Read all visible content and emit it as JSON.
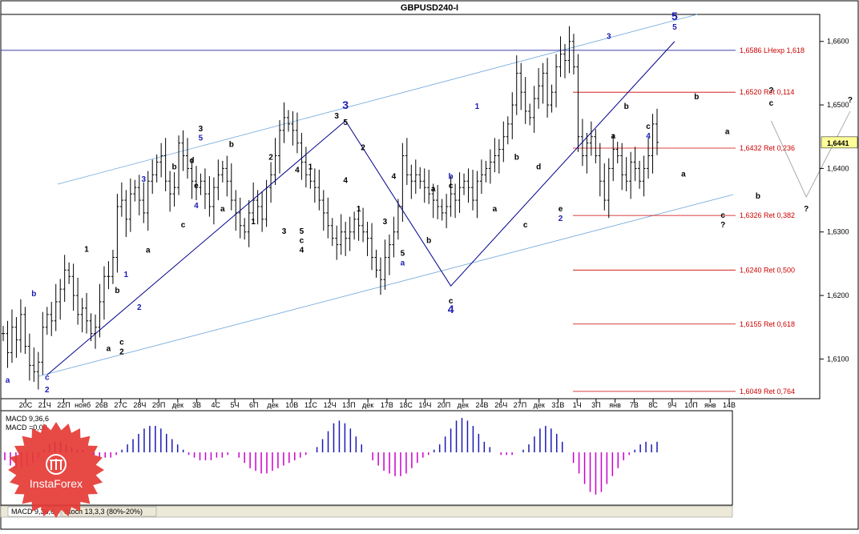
{
  "title": "GBPUSD240-I",
  "colors": {
    "candle": "#000000",
    "channel": "#6fa8dc",
    "impulse_line": "#00008b",
    "fib_line": "#cc0000",
    "wave_blue": "#1a1ab3",
    "wave_black": "#000000",
    "macd_positive": "#1a1ab3",
    "macd_negative": "#cc00cc",
    "price_tag_bg": "#ffff99"
  },
  "chart_data": {
    "type": "candlestick",
    "instrument": "GBPUSD240-I",
    "ylim": [
      1.604,
      1.664
    ],
    "y_ticks": [
      "1,6600",
      "1,6500",
      "1,6400",
      "1,6300",
      "1,6200",
      "1,6100"
    ],
    "y_tick_values": [
      1.66,
      1.65,
      1.64,
      1.63,
      1.62,
      1.61
    ],
    "current_price": "1,6441",
    "x_ticks": [
      "20С",
      "21Ч",
      "22П",
      "нояб",
      "26В",
      "27С",
      "28Ч",
      "29П",
      "дек",
      "3В",
      "4С",
      "5Ч",
      "6П",
      "дек",
      "10В",
      "11С",
      "12Ч",
      "13П",
      "дек",
      "17В",
      "18С",
      "19Ч",
      "20П",
      "дек",
      "24В",
      "26Ч",
      "27П",
      "дек",
      "31В",
      "1Ч",
      "3П",
      "янв",
      "7В",
      "8С",
      "9Ч",
      "10П",
      "янв",
      "14В"
    ],
    "fib_levels": [
      {
        "label": "1,6586 LHexp 1,618",
        "value": 1.6586,
        "blue": true
      },
      {
        "label": "1,6520 Ret 0,114",
        "value": 1.652
      },
      {
        "label": "1,6432 Ret 0,236",
        "value": 1.6432
      },
      {
        "label": "1,6326 Ret 0,382",
        "value": 1.6326
      },
      {
        "label": "1,6240 Ret 0,500",
        "value": 1.624
      },
      {
        "label": "1,6155 Ret 0,618",
        "value": 1.6155
      },
      {
        "label": "1,6049 Ret 0,764",
        "value": 1.6049
      }
    ],
    "close_path": [
      1.614,
      1.611,
      1.615,
      1.613,
      1.617,
      1.612,
      1.609,
      1.608,
      1.6095,
      1.615,
      1.617,
      1.616,
      1.619,
      1.621,
      1.624,
      1.623,
      1.62,
      1.617,
      1.618,
      1.616,
      1.614,
      1.615,
      1.619,
      1.623,
      1.623,
      1.626,
      1.634,
      1.635,
      1.632,
      1.636,
      1.637,
      1.635,
      1.633,
      1.638,
      1.639,
      1.641,
      1.642,
      1.638,
      1.636,
      1.637,
      1.644,
      1.642,
      1.64,
      1.638,
      1.637,
      1.638,
      1.636,
      1.634,
      1.637,
      1.639,
      1.64,
      1.638,
      1.635,
      1.633,
      1.631,
      1.63,
      1.633,
      1.635,
      1.634,
      1.632,
      1.637,
      1.639,
      1.642,
      1.646,
      1.648,
      1.647,
      1.646,
      1.644,
      1.641,
      1.639,
      1.638,
      1.637,
      1.635,
      1.633,
      1.631,
      1.629,
      1.628,
      1.63,
      1.629,
      1.63,
      1.632,
      1.631,
      1.63,
      1.629,
      1.626,
      1.624,
      1.6225,
      1.626,
      1.628,
      1.63,
      1.634,
      1.642,
      1.639,
      1.638,
      1.639,
      1.638,
      1.637,
      1.636,
      1.635,
      1.634,
      1.633,
      1.634,
      1.636,
      1.635,
      1.637,
      1.638,
      1.637,
      1.635,
      1.638,
      1.639,
      1.64,
      1.641,
      1.642,
      1.643,
      1.645,
      1.647,
      1.65,
      1.655,
      1.652,
      1.649,
      1.648,
      1.651,
      1.653,
      1.655,
      1.65,
      1.652,
      1.656,
      1.658,
      1.657,
      1.66,
      1.656,
      1.645,
      1.642,
      1.644,
      1.645,
      1.642,
      1.638,
      1.635,
      1.64,
      1.643,
      1.642,
      1.639,
      1.638,
      1.641,
      1.64,
      1.638,
      1.64,
      1.642,
      1.647,
      1.6441
    ],
    "wave_labels": [
      {
        "text": "a",
        "i": 1,
        "v": 1.6075,
        "color": "blue",
        "below": true
      },
      {
        "text": "b",
        "i": 7,
        "v": 1.6195,
        "color": "blue"
      },
      {
        "text": "c",
        "i": 10,
        "v": 1.608,
        "color": "blue",
        "below": true
      },
      {
        "text": "2",
        "i": 10,
        "v": 1.606,
        "color": "blue",
        "below": true
      },
      {
        "text": "1",
        "i": 19,
        "v": 1.6265,
        "color": "black"
      },
      {
        "text": "a",
        "i": 24,
        "v": 1.6125,
        "color": "black",
        "below": true
      },
      {
        "text": "b",
        "i": 26,
        "v": 1.62,
        "color": "black"
      },
      {
        "text": "c",
        "i": 27,
        "v": 1.6135,
        "color": "black",
        "below": true
      },
      {
        "text": "2",
        "i": 27,
        "v": 1.612,
        "color": "black",
        "below": true
      },
      {
        "text": "1",
        "i": 28,
        "v": 1.6225,
        "color": "blue"
      },
      {
        "text": "2",
        "i": 31,
        "v": 1.619,
        "color": "blue",
        "below": true
      },
      {
        "text": "3",
        "i": 32,
        "v": 1.6375,
        "color": "blue"
      },
      {
        "text": "a",
        "i": 33,
        "v": 1.628,
        "color": "black",
        "below": true
      },
      {
        "text": "b",
        "i": 39,
        "v": 1.6395,
        "color": "black"
      },
      {
        "text": "c",
        "i": 41,
        "v": 1.632,
        "color": "black",
        "below": true
      },
      {
        "text": "3",
        "i": 45,
        "v": 1.6455,
        "color": "black"
      },
      {
        "text": "5",
        "i": 45,
        "v": 1.644,
        "color": "blue"
      },
      {
        "text": "d",
        "i": 43,
        "v": 1.6405,
        "color": "black"
      },
      {
        "text": "4",
        "i": 44,
        "v": 1.635,
        "color": "blue",
        "below": true
      },
      {
        "text": "e",
        "i": 44,
        "v": 1.6365,
        "color": "black"
      },
      {
        "text": "a",
        "i": 50,
        "v": 1.6345,
        "color": "black",
        "below": true
      },
      {
        "text": "b",
        "i": 52,
        "v": 1.643,
        "color": "black"
      },
      {
        "text": "1",
        "i": 57,
        "v": 1.6325,
        "color": "black",
        "below": true
      },
      {
        "text": "2",
        "i": 61,
        "v": 1.641,
        "color": "black"
      },
      {
        "text": "3",
        "i": 64,
        "v": 1.631,
        "color": "black",
        "below": true
      },
      {
        "text": "4",
        "i": 67,
        "v": 1.639,
        "color": "black"
      },
      {
        "text": "5",
        "i": 68,
        "v": 1.631,
        "color": "black",
        "below": true
      },
      {
        "text": "c",
        "i": 68,
        "v": 1.6295,
        "color": "black",
        "below": true
      },
      {
        "text": "4",
        "i": 68,
        "v": 1.628,
        "color": "black",
        "below": true
      },
      {
        "text": "1",
        "i": 70,
        "v": 1.6395,
        "color": "black"
      },
      {
        "text": "3",
        "i": 76,
        "v": 1.6475,
        "color": "black"
      },
      {
        "text": "5",
        "i": 78,
        "v": 1.6465,
        "color": "black"
      },
      {
        "text": "3",
        "i": 78,
        "v": 1.649,
        "color": "blue",
        "big": true
      },
      {
        "text": "4",
        "i": 78,
        "v": 1.639,
        "color": "black",
        "below": true
      },
      {
        "text": "2",
        "i": 82,
        "v": 1.6425,
        "color": "black"
      },
      {
        "text": "1",
        "i": 81,
        "v": 1.6345,
        "color": "black",
        "below": true
      },
      {
        "text": "3",
        "i": 87,
        "v": 1.6325,
        "color": "black",
        "below": true
      },
      {
        "text": "4",
        "i": 89,
        "v": 1.638,
        "color": "black"
      },
      {
        "text": "5",
        "i": 91,
        "v": 1.6275,
        "color": "black",
        "below": true
      },
      {
        "text": "a",
        "i": 91,
        "v": 1.626,
        "color": "blue",
        "below": true
      },
      {
        "text": "a",
        "i": 98,
        "v": 1.636,
        "color": "black"
      },
      {
        "text": "b",
        "i": 97,
        "v": 1.6295,
        "color": "black",
        "below": true
      },
      {
        "text": "b",
        "i": 102,
        "v": 1.638,
        "color": "blue"
      },
      {
        "text": "c",
        "i": 102,
        "v": 1.6365,
        "color": "black"
      },
      {
        "text": "c",
        "i": 102,
        "v": 1.62,
        "color": "black",
        "below": true
      },
      {
        "text": "4",
        "i": 102,
        "v": 1.6185,
        "color": "blue",
        "below": true,
        "big": true
      },
      {
        "text": "1",
        "i": 108,
        "v": 1.649,
        "color": "blue"
      },
      {
        "text": "a",
        "i": 112,
        "v": 1.6345,
        "color": "black",
        "below": true
      },
      {
        "text": "b",
        "i": 117,
        "v": 1.641,
        "color": "black"
      },
      {
        "text": "c",
        "i": 119,
        "v": 1.632,
        "color": "black",
        "below": true
      },
      {
        "text": "d",
        "i": 122,
        "v": 1.6395,
        "color": "black"
      },
      {
        "text": "e",
        "i": 127,
        "v": 1.6345,
        "color": "black",
        "below": true
      },
      {
        "text": "2",
        "i": 127,
        "v": 1.633,
        "color": "blue",
        "below": true
      },
      {
        "text": "3",
        "i": 138,
        "v": 1.66,
        "color": "blue"
      },
      {
        "text": "a",
        "i": 139,
        "v": 1.646,
        "color": "black",
        "below": true
      },
      {
        "text": "b",
        "i": 142,
        "v": 1.649,
        "color": "black"
      },
      {
        "text": "c",
        "i": 147,
        "v": 1.6475,
        "color": "black",
        "below": true
      },
      {
        "text": "4",
        "i": 147,
        "v": 1.646,
        "color": "blue",
        "below": true
      },
      {
        "text": "5",
        "i": 153,
        "v": 1.6615,
        "color": "blue"
      },
      {
        "text": "5",
        "i": 153,
        "v": 1.663,
        "color": "blue",
        "big": true
      },
      {
        "text": "a",
        "i": 155,
        "v": 1.64,
        "color": "black",
        "below": true
      },
      {
        "text": "b",
        "i": 158,
        "v": 1.6505,
        "color": "black"
      },
      {
        "text": "c",
        "i": 164,
        "v": 1.6335,
        "color": "black",
        "below": true
      },
      {
        "text": "?",
        "i": 164,
        "v": 1.632,
        "color": "black",
        "below": true
      },
      {
        "text": "a",
        "i": 165,
        "v": 1.645,
        "color": "black"
      },
      {
        "text": "b",
        "i": 172,
        "v": 1.6365,
        "color": "black",
        "below": true
      },
      {
        "text": "c",
        "i": 175,
        "v": 1.6495,
        "color": "black"
      },
      {
        "text": "?",
        "i": 175,
        "v": 1.6515,
        "color": "black"
      },
      {
        "text": "?",
        "i": 183,
        "v": 1.6345,
        "color": "black",
        "below": true
      },
      {
        "text": "?",
        "i": 193,
        "v": 1.65,
        "color": "black"
      }
    ]
  },
  "macd": {
    "label": "MACD 9,36,6",
    "value_label": "MACD =0,00",
    "values": [
      -0.3,
      -0.5,
      -0.6,
      -0.6,
      -0.5,
      -0.4,
      -0.2,
      0.1,
      0.3,
      0.4,
      0.4,
      0.3,
      0.2,
      0.1,
      0.1,
      0.0,
      -0.1,
      -0.2,
      -0.2,
      -0.2,
      -0.1,
      0.1,
      0.3,
      0.5,
      0.7,
      0.9,
      1.0,
      1.0,
      0.9,
      0.7,
      0.5,
      0.3,
      0.1,
      -0.1,
      -0.2,
      -0.3,
      -0.3,
      -0.3,
      -0.2,
      -0.2,
      -0.1,
      0.0,
      -0.2,
      -0.4,
      -0.6,
      -0.7,
      -0.8,
      -0.8,
      -0.7,
      -0.6,
      -0.5,
      -0.4,
      -0.3,
      -0.2,
      -0.1,
      0.0,
      0.2,
      0.5,
      0.8,
      1.1,
      1.2,
      1.1,
      0.9,
      0.6,
      0.3,
      0.0,
      -0.3,
      -0.5,
      -0.7,
      -0.8,
      -0.9,
      -0.9,
      -0.8,
      -0.6,
      -0.4,
      -0.2,
      -0.1,
      0.1,
      0.3,
      0.6,
      0.9,
      1.2,
      1.3,
      1.2,
      1.0,
      0.7,
      0.4,
      0.2,
      0.0,
      -0.1,
      -0.1,
      -0.1,
      0.0,
      0.1,
      0.3,
      0.6,
      0.9,
      1.0,
      0.9,
      0.7,
      0.4,
      0.0,
      -0.4,
      -0.8,
      -1.2,
      -1.5,
      -1.6,
      -1.5,
      -1.2,
      -0.9,
      -0.6,
      -0.3,
      -0.1,
      0.1,
      0.3,
      0.4,
      0.3,
      0.4
    ]
  },
  "tabs": {
    "macd": "MACD 9,36,6",
    "stoch": "Stoch 13,3,3 (80%-20%)"
  },
  "logo": {
    "text": "InstaForex"
  }
}
